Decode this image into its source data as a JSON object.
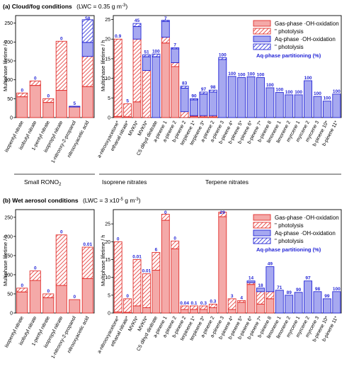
{
  "colors": {
    "gas_oh": "#f4a9a8",
    "gas_oh_edge": "#e2302d",
    "gas_photolysis_hatch": "#e2302d",
    "aq_oh": "#a6a8f0",
    "aq_oh_edge": "#2426d6",
    "aq_photolysis_hatch": "#2426d6",
    "partition_label": "#2426d6"
  },
  "legend": {
    "gas_oh": "Gas-phase ·OH-oxidation",
    "gas_photolysis": "\"        photolysis",
    "aq_oh": "Aq-phase ·OH-oxidation",
    "aq_photolysis": "\"        photolysis",
    "partition": "Aq-phase partitioning (%)"
  },
  "group_labels": {
    "small": "Small RONO",
    "small_sub": "2",
    "isoprene": "Isoprene nitrates",
    "terpene": "Terpene nitrates"
  },
  "chart_data": [
    {
      "type": "bar",
      "stacked": true,
      "panel_label": "(a) Cloud/fog conditions",
      "condition": "(LWC = 0.35 g m",
      "condition_exp": "-3",
      "ylabel": "Multiphase lifetime / h",
      "subplots": [
        {
          "name": "small",
          "ylim": [
            0,
            270
          ],
          "yticks": [
            0,
            50,
            100,
            150,
            200,
            250
          ],
          "categories": [
            "isopentyl nitrate",
            "isobutyl nitrate",
            "1-pentyl nitrate",
            "isopropyl nitrate",
            "1-nitrooxy-2-propanol",
            "nitrooxyacetic acid"
          ],
          "series": [
            {
              "name": "Gas-phase ·OH-oxidation",
              "values": [
                55,
                85,
                40,
                72,
                28,
                82
              ]
            },
            {
              "name": "Gas-phase photolysis",
              "values": [
                10,
                12,
                10,
                130,
                0,
                80
              ]
            },
            {
              "name": "Aq-phase ·OH-oxidation",
              "values": [
                0,
                0,
                0,
                0,
                0,
                37
              ]
            },
            {
              "name": "Aq-phase photolysis",
              "values": [
                0,
                0,
                0,
                0,
                2,
                60
              ]
            }
          ],
          "partitioning": [
            "0",
            "0",
            "0",
            "0",
            "5",
            "58"
          ]
        },
        {
          "name": "isoprene-terpene",
          "ylim": [
            0,
            26
          ],
          "yticks": [
            0,
            5,
            10,
            15,
            20,
            25
          ],
          "categories": [
            "a-nitrooxyacetone*",
            "ethanal nitrate*",
            "MVKN*",
            "MVKN*",
            "C5 dihyd dinitrate",
            "a-pinene 1",
            "a-pinene 2",
            "b-pinene 2",
            "terpinene 1*",
            "terpinene 3*",
            "a-pinene 2",
            "a-pinene 3",
            "b-pinene 4*",
            "b-pinene 5*",
            "b-pinene 6*",
            "b-pinene 7*",
            "b-pinene 8",
            "limonene 1",
            "limonene 2",
            "myrcene 1",
            "myrcene 2",
            "myrcene 3",
            "b-pinene 10*",
            "b-pinene 11*"
          ],
          "series": [
            {
              "name": "Gas-phase ·OH-oxidation",
              "values": [
                0.3,
                0.2,
                4.0,
                0.0,
                0.0,
                19.0,
                13.0,
                0.0,
                0.3,
                0.2,
                0.2,
                0.0,
                0,
                0,
                0,
                0,
                0,
                0,
                0,
                0,
                0,
                0,
                0,
                0
              ]
            },
            {
              "name": "Gas-phase photolysis",
              "values": [
                19.7,
                3.3,
                16.0,
                12.0,
                0.0,
                1.5,
                1.0,
                1.5,
                0.2,
                0.3,
                0.3,
                0.0,
                0,
                0,
                0,
                0,
                0,
                0,
                0,
                0,
                0,
                0,
                0,
                0
              ]
            },
            {
              "name": "Aq-phase ·OH-oxidation",
              "values": [
                0.0,
                0.0,
                3.2,
                3.5,
                15.5,
                4.0,
                3.5,
                6.0,
                4.0,
                5.5,
                6.0,
                14.8,
                10.5,
                10.2,
                10.4,
                10.2,
                7.6,
                6.4,
                5.8,
                5.8,
                9.4,
                5.4,
                4.2,
                6.0
              ]
            },
            {
              "name": "Aq-phase photolysis",
              "values": [
                0.0,
                0.0,
                0.8,
                0.5,
                0.7,
                0.3,
                0.3,
                0.5,
                0.3,
                0.5,
                0.5,
                0.5,
                0,
                0,
                0,
                0,
                0,
                0,
                0,
                0,
                0,
                0,
                0,
                0
              ]
            }
          ],
          "partitioning": [
            "0.9",
            "5",
            "45",
            "51",
            "100",
            "7",
            "7",
            "83",
            "90",
            "97",
            "98",
            "100",
            "100",
            "100",
            "100",
            "100",
            "100",
            "100",
            "100",
            "100",
            "100",
            "100",
            "100",
            "100"
          ]
        }
      ]
    },
    {
      "type": "bar",
      "stacked": true,
      "panel_label": "(b) Wet aerosol conditions",
      "condition": "(LWC = 3 x10",
      "condition_exp": "-5",
      "condition_tail": " g m",
      "condition_exp2": "-3",
      "ylabel": "Multiphase lifetime / h",
      "subplots": [
        {
          "name": "small",
          "ylim": [
            0,
            270
          ],
          "yticks": [
            0,
            50,
            100,
            150,
            200,
            250
          ],
          "categories": [
            "isopentyl nitrate",
            "isobutyl nitrate",
            "1-pentyl nitrate",
            "isopropyl nitrate",
            "1-nitrooxy-2-propanol",
            "nitrooxyacetic acid"
          ],
          "series": [
            {
              "name": "Gas-phase ·OH-oxidation",
              "values": [
                55,
                85,
                40,
                72,
                35,
                90
              ]
            },
            {
              "name": "Gas-phase photolysis",
              "values": [
                10,
                25,
                10,
                132,
                0,
                82
              ]
            },
            {
              "name": "Aq-phase ·OH-oxidation",
              "values": [
                0,
                0,
                0,
                0,
                0,
                0
              ]
            },
            {
              "name": "Aq-phase photolysis",
              "values": [
                0,
                0,
                0,
                0,
                0,
                0
              ]
            }
          ],
          "partitioning": [
            "0",
            "0",
            "0",
            "0",
            "0",
            "0.01"
          ]
        },
        {
          "name": "isoprene-terpene",
          "ylim": [
            0,
            29
          ],
          "yticks": [
            0,
            5,
            10,
            15,
            20,
            25
          ],
          "categories": [
            "a-nitrooxyacetone*",
            "ethanal nitrate*",
            "MVKN*",
            "MVKN*",
            "C5 dihyd dinitrate",
            "a-pinene 1",
            "a-pinene 2",
            "b-pinene 2",
            "terpinene 1*",
            "terpinene 3*",
            "a-pinene 2",
            "a-pinene 3",
            "b-pinene 4*",
            "b-pinene 5*",
            "b-pinene 6*",
            "b-pinene 7*",
            "b-pinene 8",
            "limonene 1",
            "limonene 2",
            "myrcene 1",
            "myrcene 2",
            "myrcene 3",
            "b-pinene 10*",
            "b-pinene 11*"
          ],
          "series": [
            {
              "name": "Gas-phase ·OH-oxidation",
              "values": [
                0.3,
                0.2,
                2.0,
                1.5,
                12.0,
                26.0,
                18.0,
                1.0,
                1.0,
                1.0,
                1.5,
                27.0,
                1.0,
                3.0,
                8.0,
                2.5,
                4.0,
                0.0,
                0.0,
                0.0,
                0.0,
                0.0,
                0.0,
                0.0
              ]
            },
            {
              "name": "Gas-phase photolysis",
              "values": [
                19.7,
                3.8,
                13.0,
                9.5,
                5.0,
                1.7,
                2.2,
                1.0,
                1.0,
                1.0,
                1.0,
                1.3,
                3.0,
                0.5,
                0.5,
                3.5,
                2.0,
                0.0,
                0.0,
                0.0,
                0.0,
                0.0,
                0.0,
                0.0
              ]
            },
            {
              "name": "Aq-phase ·OH-oxidation",
              "values": [
                0.0,
                0.0,
                0.0,
                0.0,
                0.0,
                0.0,
                0.0,
                0.0,
                0.0,
                0.0,
                0.0,
                0.0,
                0.0,
                0.0,
                0.5,
                1.0,
                7.0,
                6.4,
                5.0,
                5.8,
                9.0,
                6.0,
                4.0,
                6.0
              ]
            },
            {
              "name": "Aq-phase photolysis",
              "values": [
                0,
                0,
                0,
                0,
                0,
                0,
                0,
                0,
                0,
                0,
                0,
                0,
                0,
                0,
                0,
                0,
                0,
                0,
                0,
                0,
                0,
                0,
                0,
                0
              ]
            }
          ],
          "partitioning": [
            "0",
            "0",
            "0.01",
            "0.01",
            "6",
            "0",
            "0",
            "0.04",
            "0.1",
            "0.3",
            "0.3",
            "29",
            "3",
            "4",
            "14",
            "18",
            "49",
            "71",
            "89",
            "90",
            "97",
            "98",
            "99",
            "100"
          ]
        }
      ]
    }
  ]
}
